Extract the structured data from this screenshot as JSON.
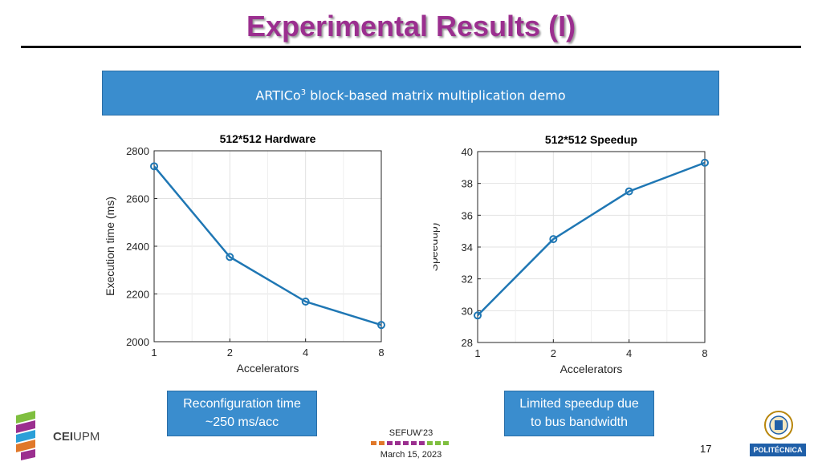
{
  "slide": {
    "title": "Experimental Results (I)",
    "banner_main": "ARTICo",
    "banner_sup": "3",
    "banner_rest": " block-based matrix multiplication demo",
    "callout_left_line1": "Reconfiguration time",
    "callout_left_line2": "~250 ms/acc",
    "callout_right_line1": "Limited speedup due",
    "callout_right_line2": "to bus bandwidth",
    "footer_event": "SEFUW’23",
    "footer_date": "March 15, 2023",
    "page_number": "17",
    "logo_left_bold": "CEI",
    "logo_left_normal": "UPM",
    "logo_right_badge": "POLITÉCNICA"
  },
  "colors": {
    "title": "#9b2f8f",
    "banner": "#3a8dce",
    "line": "#1f77b4",
    "footer_dots": [
      "#e0782a",
      "#e0782a",
      "#9b2f8f",
      "#9b2f8f",
      "#9b2f8f",
      "#9b2f8f",
      "#9b2f8f",
      "#7fbf3f",
      "#7fbf3f",
      "#7fbf3f"
    ]
  },
  "chart_data": [
    {
      "type": "line",
      "title": "512*512 Hardware",
      "xlabel": "Accelerators",
      "ylabel": "Execution time (ms)",
      "categories": [
        "1",
        "2",
        "4",
        "8"
      ],
      "values": [
        2735,
        2355,
        2168,
        2070
      ],
      "ylim": [
        2000,
        2800
      ],
      "yticks": [
        2000,
        2200,
        2400,
        2600,
        2800
      ],
      "grid": true,
      "marker": "circle"
    },
    {
      "type": "line",
      "title": "512*512 Speedup",
      "xlabel": "Accelerators",
      "ylabel": "Speedup)",
      "categories": [
        "1",
        "2",
        "4",
        "8"
      ],
      "values": [
        29.7,
        34.5,
        37.5,
        39.3
      ],
      "ylim": [
        28,
        40
      ],
      "yticks": [
        28,
        30,
        32,
        34,
        36,
        38,
        40
      ],
      "grid": true,
      "marker": "circle"
    }
  ]
}
